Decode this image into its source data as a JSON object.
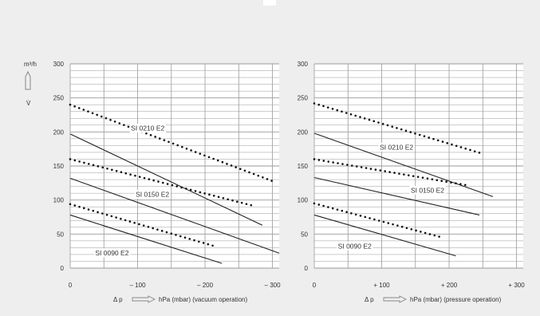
{
  "page": {
    "background": "#eeeeee",
    "top_mark_color": "#ffffff"
  },
  "y_axis": {
    "unit": "m³/h",
    "symbol": "V̇"
  },
  "chart_data": [
    {
      "type": "line",
      "x_direction": "negative",
      "xlim": [
        0,
        -310
      ],
      "ylim": [
        0,
        300
      ],
      "xticks": [
        0,
        -100,
        -200,
        -300
      ],
      "xtick_labels": [
        "0",
        "– 100",
        "– 200",
        "– 300"
      ],
      "yticks": [
        0,
        50,
        100,
        150,
        200,
        250,
        300
      ],
      "ytick_labels": [
        "0",
        "50",
        "100",
        "150",
        "200",
        "250",
        "300"
      ],
      "xlabel_left": "Δ p",
      "xlabel_right": "hPa (mbar) (vacuum operation)",
      "grid": true,
      "series": [
        {
          "name": "",
          "style": "dotted",
          "points": [
            [
              0,
              240
            ],
            [
              -305,
              126
            ]
          ]
        },
        {
          "name": "",
          "style": "solid",
          "points": [
            [
              0,
              197
            ],
            [
              -285,
              63
            ]
          ]
        },
        {
          "name": "",
          "style": "dotted",
          "points": [
            [
              0,
              160
            ],
            [
              -270,
              92
            ]
          ]
        },
        {
          "name": "",
          "style": "solid",
          "points": [
            [
              0,
              132
            ],
            [
              -310,
              22
            ]
          ]
        },
        {
          "name": "",
          "style": "dotted",
          "points": [
            [
              0,
              94
            ],
            [
              -215,
              32
            ]
          ]
        },
        {
          "name": "",
          "style": "solid",
          "points": [
            [
              0,
              78
            ],
            [
              -225,
              7
            ]
          ]
        }
      ],
      "annotations": [
        {
          "text": "SI 0210 E2",
          "x": -115,
          "y": 202
        },
        {
          "text": "SI 0150 E2",
          "x": -122,
          "y": 105
        },
        {
          "text": "SI 0090 E2",
          "x": -62,
          "y": 19
        }
      ]
    },
    {
      "type": "line",
      "x_direction": "positive",
      "xlim": [
        0,
        310
      ],
      "ylim": [
        0,
        300
      ],
      "xticks": [
        0,
        100,
        200,
        300
      ],
      "xtick_labels": [
        "0",
        "+ 100",
        "+ 200",
        "+ 300"
      ],
      "yticks": [
        0,
        50,
        100,
        150,
        200,
        250,
        300
      ],
      "ytick_labels": [
        "0",
        "50",
        "100",
        "150",
        "200",
        "250",
        "300"
      ],
      "xlabel_left": "Δ p",
      "xlabel_right": "hPa (mbar) (pressure operation)",
      "grid": true,
      "series": [
        {
          "name": "",
          "style": "dotted",
          "points": [
            [
              0,
              242
            ],
            [
              250,
              168
            ]
          ]
        },
        {
          "name": "",
          "style": "solid",
          "points": [
            [
              0,
              198
            ],
            [
              265,
              105
            ]
          ]
        },
        {
          "name": "",
          "style": "dotted",
          "points": [
            [
              0,
              160
            ],
            [
              225,
              122
            ]
          ]
        },
        {
          "name": "",
          "style": "solid",
          "points": [
            [
              0,
              133
            ],
            [
              245,
              78
            ]
          ]
        },
        {
          "name": "",
          "style": "dotted",
          "points": [
            [
              0,
              95
            ],
            [
              190,
              45
            ]
          ]
        },
        {
          "name": "",
          "style": "solid",
          "points": [
            [
              0,
              78
            ],
            [
              210,
              18
            ]
          ]
        }
      ],
      "annotations": [
        {
          "text": "SI 0210 E2",
          "x": 122,
          "y": 174
        },
        {
          "text": "SI 0150 E2",
          "x": 168,
          "y": 111
        },
        {
          "text": "SI 0090 E2",
          "x": 60,
          "y": 29
        }
      ]
    }
  ]
}
